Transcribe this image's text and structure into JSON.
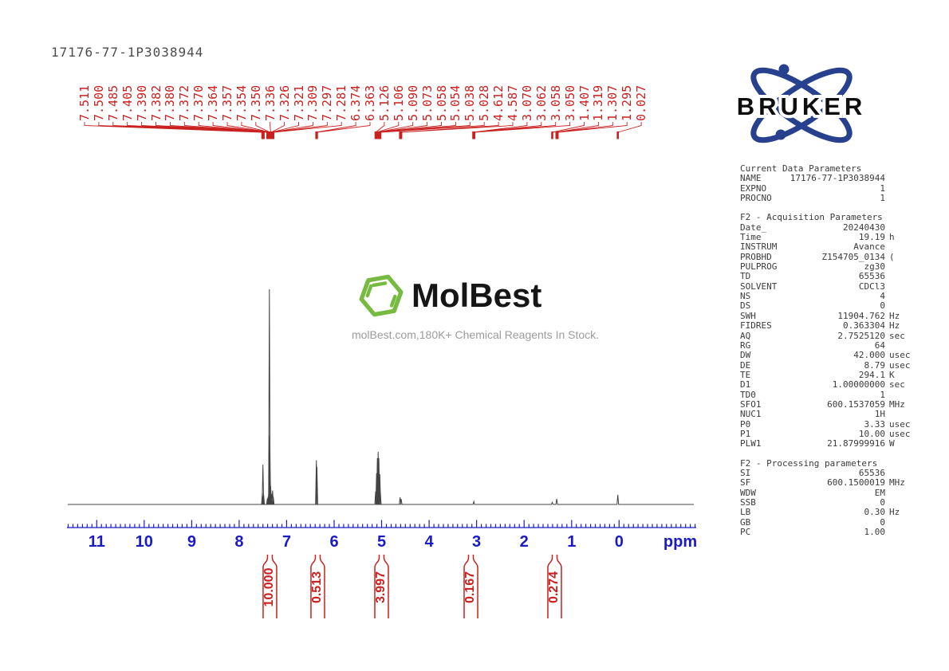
{
  "page": {
    "title": "17176-77-1P3038944"
  },
  "watermark": {
    "brand": "MolBest",
    "tagline": "molBest.com,180K+ Chemical Reagents In Stock."
  },
  "bruker": {
    "brand": "BRUKER"
  },
  "colors": {
    "peak_red": "#c9211f",
    "axis_blue": "#1b1bc3",
    "trace_gray": "#434343",
    "bruker_blue": "#27418f",
    "molbest_green": "#76bb3f"
  },
  "axis": {
    "unit": "ppm",
    "ticks": [
      "11",
      "10",
      "9",
      "8",
      "7",
      "6",
      "5",
      "4",
      "3",
      "2",
      "1",
      "0"
    ]
  },
  "peak_labels": [
    "7.511",
    "7.500",
    "7.485",
    "7.405",
    "7.390",
    "7.382",
    "7.380",
    "7.372",
    "7.370",
    "7.364",
    "7.357",
    "7.354",
    "7.350",
    "7.336",
    "7.326",
    "7.321",
    "7.309",
    "7.297",
    "7.281",
    "6.374",
    "6.363",
    "5.126",
    "5.106",
    "5.090",
    "5.073",
    "5.058",
    "5.054",
    "5.038",
    "5.028",
    "4.612",
    "4.587",
    "3.070",
    "3.062",
    "3.058",
    "3.050",
    "1.407",
    "1.319",
    "1.307",
    "1.295",
    "0.027"
  ],
  "integrals": [
    {
      "value": "10.000",
      "ppm": 7.353
    },
    {
      "value": "0.513",
      "ppm": 6.345
    },
    {
      "value": "3.997",
      "ppm": 5.001
    },
    {
      "value": "0.167",
      "ppm": 3.12
    },
    {
      "value": "0.274",
      "ppm": 1.357
    }
  ],
  "parameters": {
    "sections": [
      {
        "header": "Current Data Parameters",
        "rows": [
          [
            "NAME",
            "17176-77-1P3038944",
            ""
          ],
          [
            "EXPNO",
            "1",
            ""
          ],
          [
            "PROCNO",
            "1",
            ""
          ]
        ]
      },
      {
        "header": "F2 - Acquisition Parameters",
        "rows": [
          [
            "Date_",
            "20240430",
            ""
          ],
          [
            "Time",
            "19.19",
            "h"
          ],
          [
            "INSTRUM",
            "Avance",
            ""
          ],
          [
            "PROBHD",
            "Z154705_0134",
            "("
          ],
          [
            "PULPROG",
            "zg30",
            ""
          ],
          [
            "TD",
            "65536",
            ""
          ],
          [
            "SOLVENT",
            "CDCl3",
            ""
          ],
          [
            "NS",
            "4",
            ""
          ],
          [
            "DS",
            "0",
            ""
          ],
          [
            "SWH",
            "11904.762",
            "Hz"
          ],
          [
            "FIDRES",
            "0.363304",
            "Hz"
          ],
          [
            "AQ",
            "2.7525120",
            "sec"
          ],
          [
            "RG",
            "64",
            ""
          ],
          [
            "DW",
            "42.000",
            "usec"
          ],
          [
            "DE",
            "8.79",
            "usec"
          ],
          [
            "TE",
            "294.1",
            "K"
          ],
          [
            "D1",
            "1.00000000",
            "sec"
          ],
          [
            "TD0",
            "1",
            ""
          ],
          [
            "SFO1",
            "600.1537059",
            "MHz"
          ],
          [
            "NUC1",
            "1H",
            ""
          ],
          [
            "P0",
            "3.33",
            "usec"
          ],
          [
            "P1",
            "10.00",
            "usec"
          ],
          [
            "PLW1",
            "21.87999916",
            "W"
          ]
        ]
      },
      {
        "header": "F2 - Processing parameters",
        "rows": [
          [
            "SI",
            "65536",
            ""
          ],
          [
            "SF",
            "600.1500019",
            "MHz"
          ],
          [
            "WDW",
            "EM",
            ""
          ],
          [
            "SSB",
            "0",
            ""
          ],
          [
            "LB",
            "0.30",
            "Hz"
          ],
          [
            "GB",
            "0",
            ""
          ],
          [
            "PC",
            "1.00",
            ""
          ]
        ]
      }
    ]
  },
  "chart_data": {
    "type": "line",
    "title": "1H NMR spectrum 17176-77-1P3038944 (600 MHz, CDCl3)",
    "xlabel": "ppm",
    "x_range": [
      11.6,
      -1.6
    ],
    "grid": false,
    "peaks_ppm": [
      7.511,
      7.5,
      7.485,
      7.405,
      7.39,
      7.382,
      7.38,
      7.372,
      7.37,
      7.364,
      7.357,
      7.354,
      7.35,
      7.336,
      7.326,
      7.321,
      7.309,
      7.297,
      7.281,
      6.374,
      6.363,
      5.126,
      5.106,
      5.09,
      5.073,
      5.058,
      5.054,
      5.038,
      5.028,
      4.612,
      4.587,
      3.07,
      3.062,
      3.058,
      3.05,
      1.407,
      1.319,
      1.307,
      1.295,
      0.027
    ],
    "integral_regions": [
      {
        "center_ppm": 7.353,
        "value": 10.0
      },
      {
        "center_ppm": 6.345,
        "value": 0.513
      },
      {
        "center_ppm": 5.001,
        "value": 3.997
      },
      {
        "center_ppm": 3.12,
        "value": 0.167
      },
      {
        "center_ppm": 1.357,
        "value": 0.274
      }
    ],
    "trace_peaks": [
      {
        "ppm": 7.511,
        "i": 0.055
      },
      {
        "ppm": 7.5,
        "i": 0.185
      },
      {
        "ppm": 7.485,
        "i": 0.045
      },
      {
        "ppm": 7.405,
        "i": 0.028
      },
      {
        "ppm": 7.39,
        "i": 0.035
      },
      {
        "ppm": 7.372,
        "i": 0.1
      },
      {
        "ppm": 7.364,
        "i": 1.0
      },
      {
        "ppm": 7.355,
        "i": 0.32
      },
      {
        "ppm": 7.347,
        "i": 0.13
      },
      {
        "ppm": 7.336,
        "i": 0.085
      },
      {
        "ppm": 7.321,
        "i": 0.05
      },
      {
        "ppm": 7.297,
        "i": 0.065
      },
      {
        "ppm": 7.281,
        "i": 0.035
      },
      {
        "ppm": 6.374,
        "i": 0.205
      },
      {
        "ppm": 6.363,
        "i": 0.175
      },
      {
        "ppm": 5.126,
        "i": 0.06
      },
      {
        "ppm": 5.106,
        "i": 0.145
      },
      {
        "ppm": 5.09,
        "i": 0.215
      },
      {
        "ppm": 5.073,
        "i": 0.245
      },
      {
        "ppm": 5.058,
        "i": 0.215
      },
      {
        "ppm": 5.038,
        "i": 0.14
      },
      {
        "ppm": 5.028,
        "i": 0.06
      },
      {
        "ppm": 4.612,
        "i": 0.033
      },
      {
        "ppm": 4.587,
        "i": 0.025
      },
      {
        "ppm": 3.06,
        "i": 0.014
      },
      {
        "ppm": 1.407,
        "i": 0.01
      },
      {
        "ppm": 1.313,
        "i": 0.026
      },
      {
        "ppm": 0.027,
        "i": 0.045
      }
    ]
  }
}
